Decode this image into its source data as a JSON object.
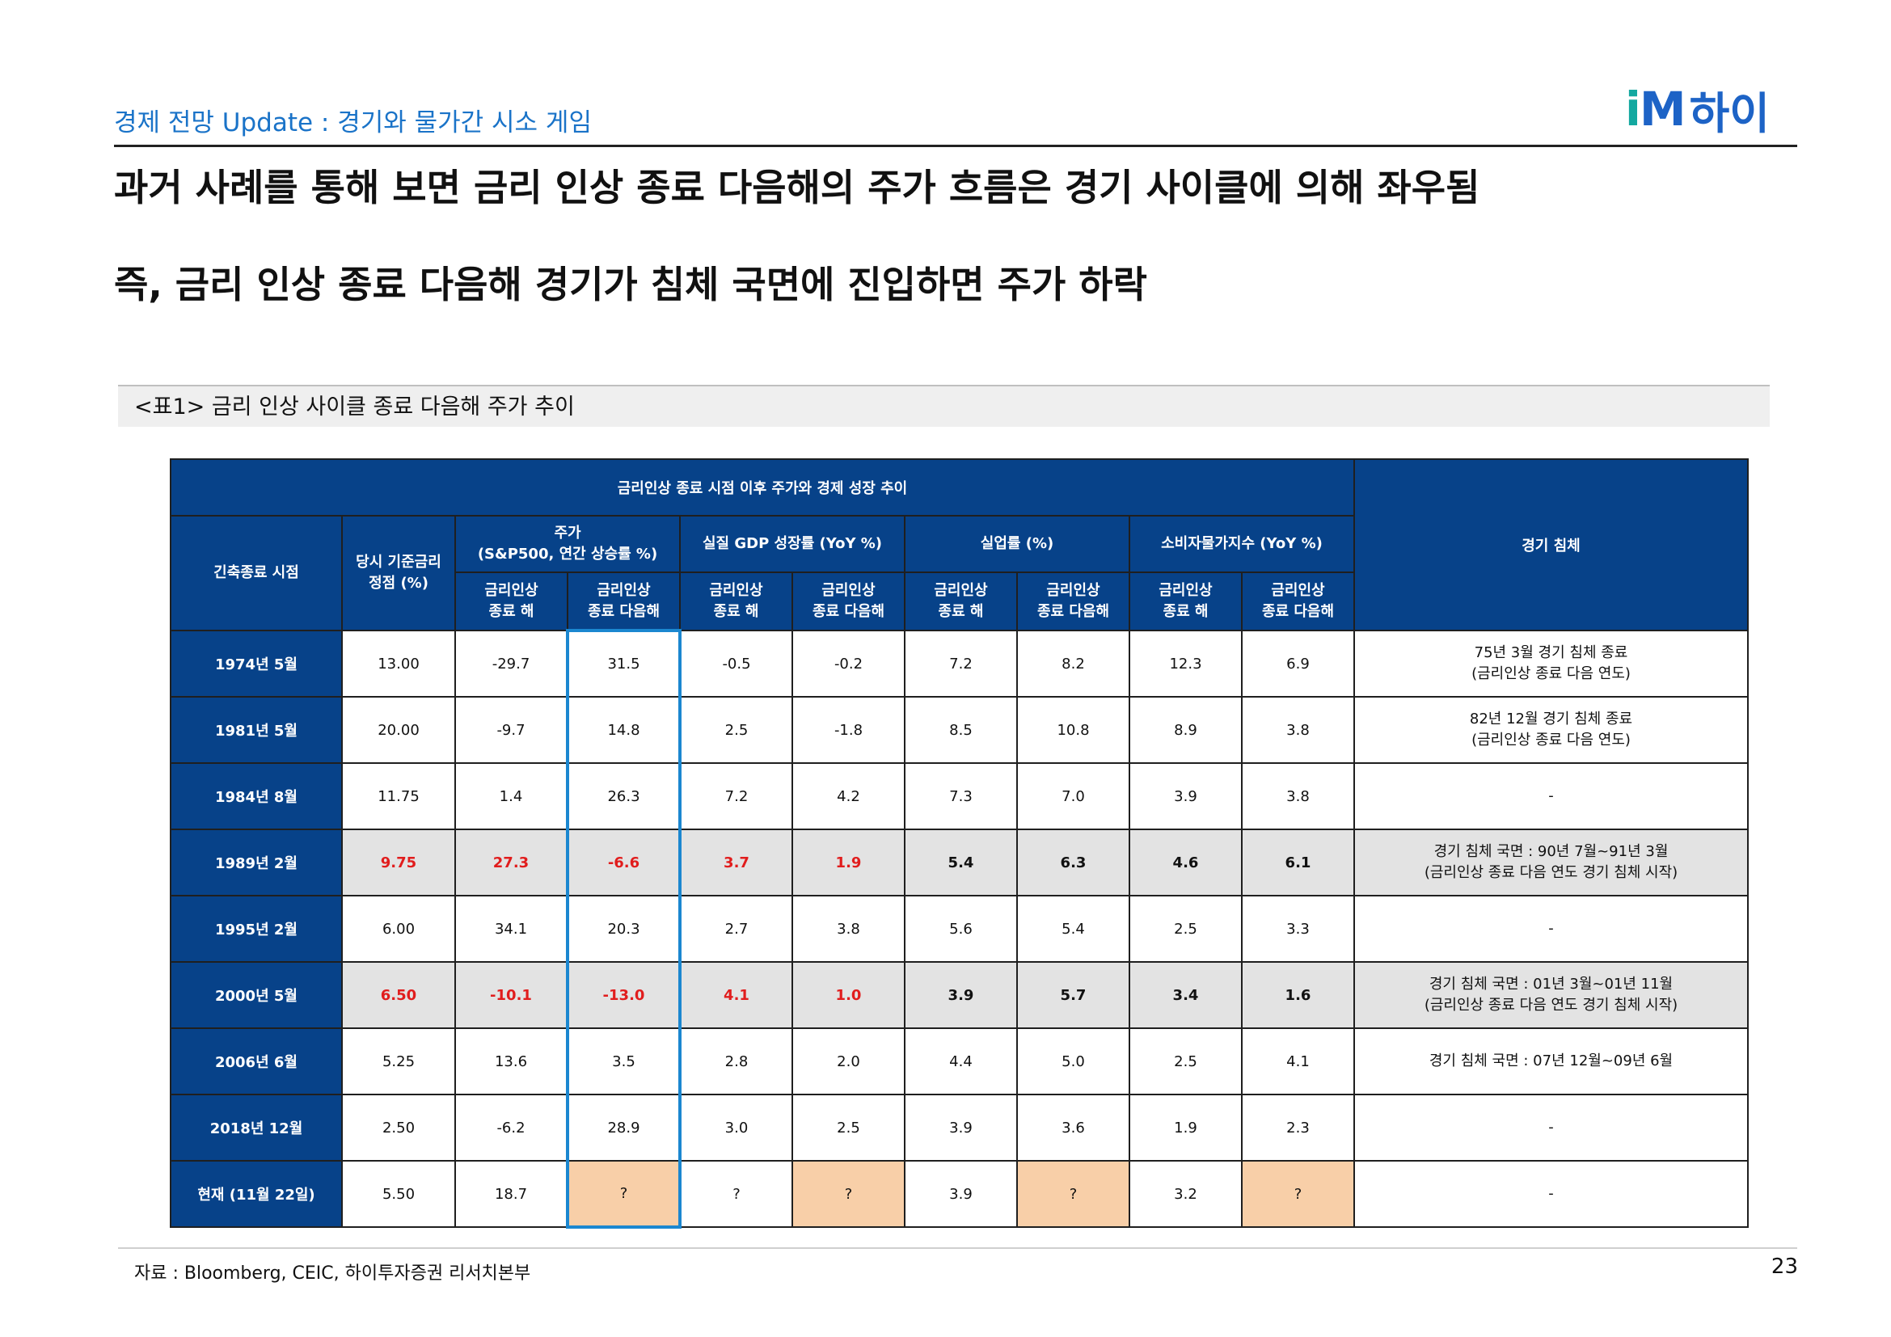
{
  "header": {
    "section_title": "경제 전망 Update : 경기와 물가간 시소 게임",
    "logo_mark_i": "i",
    "logo_mark_m": "M",
    "logo_text": "하이"
  },
  "headlines": [
    "과거 사례를 통해 보면 금리 인상 종료 다음해의 주가 흐름은 경기 사이클에 의해 좌우됨",
    "즉, 금리 인상 종료 다음해 경기가 침체 국면에 진입하면 주가 하락"
  ],
  "table_caption": "<표1> 금리 인상 사이클 종료 다음해 주가 추이",
  "table": {
    "title": "금리인상 종료 시점 이후 주가와 경제 성장 추이",
    "col_period": "긴축종료 시점",
    "col_rate_line1": "당시 기준금리",
    "col_rate_line2": "정점 (%)",
    "group_stock_line1": "주가",
    "group_stock_line2": "(S&P500, 연간 상승률 %)",
    "group_gdp": "실질 GDP 성장률 (YoY %)",
    "group_unemp": "실업률 (%)",
    "group_cpi": "소비자물가지수 (YoY %)",
    "col_recession": "경기 침체",
    "sub_end_year_line1": "금리인상",
    "sub_end_year_line2": "종료 해",
    "sub_next_year_line1": "금리인상",
    "sub_next_year_line2": "종료 다음해",
    "rows": [
      {
        "period": "1974년 5월",
        "rate": "13.00",
        "stock_end": "-29.7",
        "stock_next": "31.5",
        "gdp_end": "-0.5",
        "gdp_next": "-0.2",
        "unemp_end": "7.2",
        "unemp_next": "8.2",
        "cpi_end": "12.3",
        "cpi_next": "6.9",
        "recession_line1": "75년 3월 경기 침체 종료",
        "recession_line2": "(금리인상 종료 다음 연도)"
      },
      {
        "period": "1981년 5월",
        "rate": "20.00",
        "stock_end": "-9.7",
        "stock_next": "14.8",
        "gdp_end": "2.5",
        "gdp_next": "-1.8",
        "unemp_end": "8.5",
        "unemp_next": "10.8",
        "cpi_end": "8.9",
        "cpi_next": "3.8",
        "recession_line1": "82년 12월 경기 침체 종료",
        "recession_line2": "(금리인상 종료 다음 연도)"
      },
      {
        "period": "1984년 8월",
        "rate": "11.75",
        "stock_end": "1.4",
        "stock_next": "26.3",
        "gdp_end": "7.2",
        "gdp_next": "4.2",
        "unemp_end": "7.3",
        "unemp_next": "7.0",
        "cpi_end": "3.9",
        "cpi_next": "3.8",
        "recession_line1": "-",
        "recession_line2": ""
      },
      {
        "period": "1989년 2월",
        "rate": "9.75",
        "stock_end": "27.3",
        "stock_next": "-6.6",
        "gdp_end": "3.7",
        "gdp_next": "1.9",
        "unemp_end": "5.4",
        "unemp_next": "6.3",
        "cpi_end": "4.6",
        "cpi_next": "6.1",
        "recession_line1": "경기 침체 국면 : 90년 7월~91년 3월",
        "recession_line2": "(금리인상 종료 다음 연도 경기 침체 시작)"
      },
      {
        "period": "1995년 2월",
        "rate": "6.00",
        "stock_end": "34.1",
        "stock_next": "20.3",
        "gdp_end": "2.7",
        "gdp_next": "3.8",
        "unemp_end": "5.6",
        "unemp_next": "5.4",
        "cpi_end": "2.5",
        "cpi_next": "3.3",
        "recession_line1": "-",
        "recession_line2": ""
      },
      {
        "period": "2000년 5월",
        "rate": "6.50",
        "stock_end": "-10.1",
        "stock_next": "-13.0",
        "gdp_end": "4.1",
        "gdp_next": "1.0",
        "unemp_end": "3.9",
        "unemp_next": "5.7",
        "cpi_end": "3.4",
        "cpi_next": "1.6",
        "recession_line1": "경기 침체 국면 : 01년 3월~01년 11월",
        "recession_line2": "(금리인상 종료 다음 연도 경기 침체 시작)"
      },
      {
        "period": "2006년 6월",
        "rate": "5.25",
        "stock_end": "13.6",
        "stock_next": "3.5",
        "gdp_end": "2.8",
        "gdp_next": "2.0",
        "unemp_end": "4.4",
        "unemp_next": "5.0",
        "cpi_end": "2.5",
        "cpi_next": "4.1",
        "recession_line1": "경기 침체 국면 : 07년 12월~09년 6월",
        "recession_line2": ""
      },
      {
        "period": "2018년 12월",
        "rate": "2.50",
        "stock_end": "-6.2",
        "stock_next": "28.9",
        "gdp_end": "3.0",
        "gdp_next": "2.5",
        "unemp_end": "3.9",
        "unemp_next": "3.6",
        "cpi_end": "1.9",
        "cpi_next": "2.3",
        "recession_line1": "-",
        "recession_line2": ""
      },
      {
        "period": "현재 (11월 22일)",
        "rate": "5.50",
        "stock_end": "18.7",
        "stock_next": "?",
        "gdp_end": "?",
        "gdp_next": "?",
        "unemp_end": "3.9",
        "unemp_next": "?",
        "cpi_end": "3.2",
        "cpi_next": "?",
        "recession_line1": "-",
        "recession_line2": ""
      }
    ]
  },
  "footer": {
    "source": "자료 : Bloomberg, CEIC, 하이투자증권 리서치본부",
    "page_number": "23"
  },
  "colors": {
    "accent_blue": "#1a73c8",
    "header_navy": "#074289",
    "highlight_red": "#e11d1d",
    "shaded_row": "#e3e3e3",
    "peach_cell": "#f8cfa8",
    "highlight_border": "#1b87d0"
  }
}
